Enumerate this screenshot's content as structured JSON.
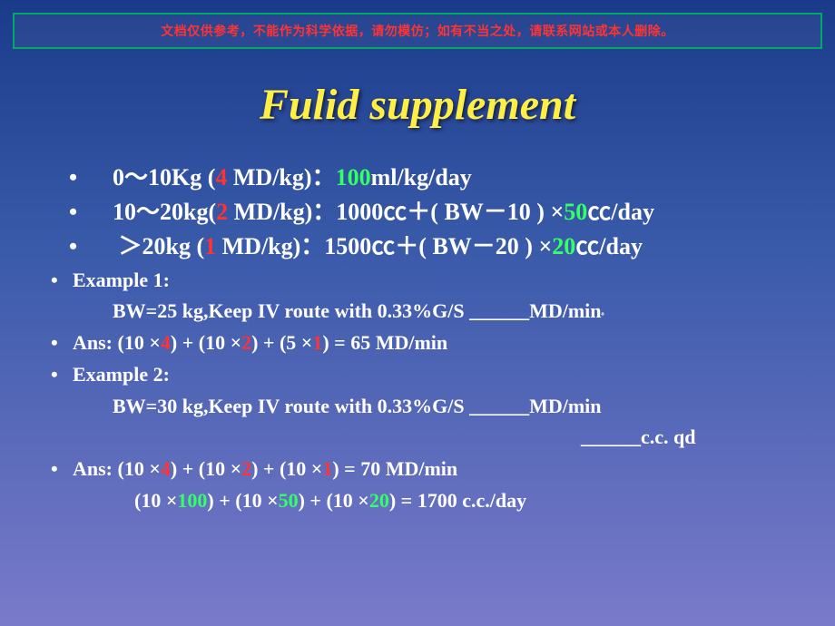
{
  "banner": {
    "text": "文档仅供参考，不能作为科学依据，请勿模仿；如有不当之处，请联系网站或本人删除。",
    "text_color": "#ff3333",
    "border_color": "#00aa66"
  },
  "title": {
    "text": "Fulid supplement",
    "color": "#ffee44",
    "font_style": "italic",
    "font_weight": "bold",
    "fontsize": 48
  },
  "rules": [
    {
      "range_prefix": "0～10Kg (",
      "md": "4",
      "md_suffix": " MD/kg)：",
      "rate": "100",
      "rate_suffix": "ml/kg/day"
    },
    {
      "range_prefix": "10～20kg(",
      "md": "2",
      "md_suffix": " MD/kg)：1000㏄＋( BW－10 ) ×",
      "rate": "50",
      "rate_suffix": "㏄/day"
    },
    {
      "range_prefix": " ＞20kg    (",
      "md": "1",
      "md_suffix": " MD/kg)：1500㏄＋( BW－20 ) ×",
      "rate": "20",
      "rate_suffix": "㏄/day"
    }
  ],
  "examples": {
    "ex1_label": "Example 1:",
    "ex1_body": "BW=25 kg,Keep IV route with 0.33%G/S ______MD/min",
    "ans1_prefix": "Ans: (10 ×",
    "ans1_a": "4",
    "ans1_mid1": ") + (10 ×",
    "ans1_b": "2",
    "ans1_mid2": ") + (5 ×",
    "ans1_c": "1",
    "ans1_suffix": ") = 65 MD/min",
    "ex2_label": "Example 2:",
    "ex2_body": "BW=30 kg,Keep IV route with 0.33%G/S ______MD/min",
    "ex2_blank2": "______c.c. qd",
    "ans2_prefix": "Ans: (10 ×",
    "ans2_a": "4",
    "ans2_mid1": ") + (10 ×",
    "ans2_b": "2",
    "ans2_mid2": ") + (10 ×",
    "ans2_c": "1",
    "ans2_suffix": ") = 70 MD/min",
    "ans2b_prefix": "(10 ×",
    "ans2b_a": "100",
    "ans2b_mid1": ") + (10 ×",
    "ans2b_b": "50",
    "ans2b_mid2": ") + (10 ×",
    "ans2b_c": "20",
    "ans2b_suffix": ") = 1700 c.c./day"
  },
  "colors": {
    "white": "#ffffff",
    "red": "#ff3333",
    "green": "#33ff66",
    "bg_top": "#1a3a8a",
    "bg_bottom": "#7a7aca"
  },
  "typography": {
    "rule_fontsize": 26,
    "example_fontsize": 22,
    "font_family": "Times New Roman"
  },
  "period": "。"
}
